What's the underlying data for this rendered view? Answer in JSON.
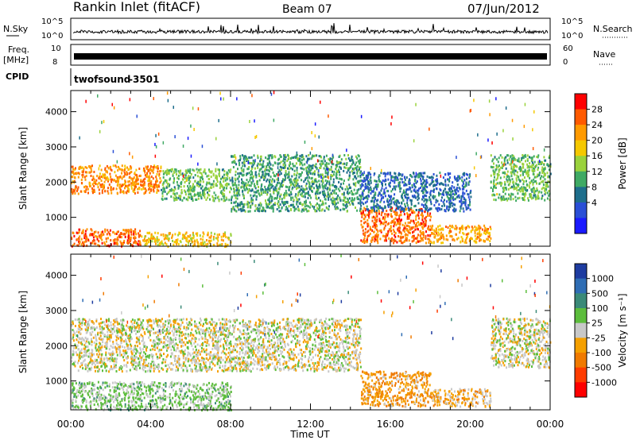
{
  "header": {
    "station": "Rankin Inlet (fitACF)",
    "beam": "Beam 07",
    "date": "07/Jun/2012"
  },
  "noise_panel": {
    "left_label": "N.Sky",
    "left_ticks": [
      "10^5",
      "10^0"
    ],
    "right_ticks": [
      "10^5",
      "10^0"
    ],
    "right_label": "N.Search"
  },
  "freq_panel": {
    "left_label": "Freq.",
    "left_unit": "[MHz]",
    "left_ticks": [
      "10",
      "8"
    ],
    "right_ticks": [
      "60",
      "0"
    ],
    "right_label": "Nave"
  },
  "cpid_panel": {
    "label": "CPID",
    "program": "twofsound",
    "id": "-3501"
  },
  "power_colorbar": {
    "label": "Power [dB]",
    "ticks": [
      "28",
      "24",
      "20",
      "16",
      "12",
      "8",
      "4"
    ],
    "colors": [
      "#ff0000",
      "#ff5a00",
      "#ff9a00",
      "#f5c800",
      "#9ad23c",
      "#3faa64",
      "#1e6e8c",
      "#2a4fd6",
      "#1a1aff"
    ]
  },
  "velocity_colorbar": {
    "label": "Velocity [m s⁻¹]",
    "ticks": [
      "1000",
      "500",
      "100",
      "25",
      "-25",
      "-100",
      "-500",
      "-1000"
    ],
    "colors": [
      "#1e3ca0",
      "#2f6db4",
      "#3a8a78",
      "#5cbd3c",
      "#c8c8c8",
      "#f5a000",
      "#f07a00",
      "#ff3c00",
      "#ff0000"
    ]
  },
  "range_axis": {
    "label": "Slant Range [km]",
    "ticks": [
      "4000",
      "3000",
      "2000",
      "1000"
    ]
  },
  "time_axis": {
    "label": "Time UT",
    "ticks": [
      "00:00",
      "04:00",
      "08:00",
      "12:00",
      "16:00",
      "20:00",
      "00:00"
    ]
  },
  "chart_data": {
    "type": "heatmap",
    "title": "Rankin Inlet (fitACF)",
    "xlabel": "Time UT",
    "ylabel": "Slant Range [km]",
    "x_ticks": [
      "00:00",
      "04:00",
      "08:00",
      "12:00",
      "16:00",
      "20:00",
      "00:00"
    ],
    "xlim_hours": [
      0,
      24
    ],
    "ylim_km": [
      180,
      4600
    ],
    "grid": false,
    "panels": [
      {
        "name": "Power [dB]",
        "colorbar_range": [
          0,
          32
        ],
        "scatter_regions": [
          {
            "t": [
              0,
              4.5
            ],
            "r": [
              1700,
              2500
            ],
            "value": 24
          },
          {
            "t": [
              0,
              3.5
            ],
            "r": [
              200,
              700
            ],
            "value": 26
          },
          {
            "t": [
              3.5,
              8
            ],
            "r": [
              200,
              600
            ],
            "value": 20
          },
          {
            "t": [
              4.5,
              8
            ],
            "r": [
              1500,
              2400
            ],
            "value": 14
          },
          {
            "t": [
              8,
              14.5
            ],
            "r": [
              1200,
              2800
            ],
            "value": 12
          },
          {
            "t": [
              14.5,
              18
            ],
            "r": [
              300,
              1300
            ],
            "value": 26
          },
          {
            "t": [
              14.5,
              20
            ],
            "r": [
              1200,
              2300
            ],
            "value": 8
          },
          {
            "t": [
              18,
              21
            ],
            "r": [
              300,
              800
            ],
            "value": 22
          },
          {
            "t": [
              21,
              24
            ],
            "r": [
              1500,
              2800
            ],
            "value": 14
          }
        ]
      },
      {
        "name": "Velocity [m s-1]",
        "colorbar_range": [
          -1000,
          1000
        ],
        "scatter_regions": [
          {
            "t": [
              0,
              8
            ],
            "r": [
              200,
              1000
            ],
            "value": 150
          },
          {
            "t": [
              0,
              14.5
            ],
            "r": [
              1300,
              2800
            ],
            "value": 0
          },
          {
            "t": [
              14.5,
              18
            ],
            "r": [
              300,
              1300
            ],
            "value": -300
          },
          {
            "t": [
              18,
              21
            ],
            "r": [
              300,
              800
            ],
            "value": -200
          },
          {
            "t": [
              21,
              24
            ],
            "r": [
              1400,
              2800
            ],
            "value": 0
          }
        ]
      }
    ],
    "noise_sky": {
      "ylim": [
        "10^0",
        "10^5"
      ]
    },
    "frequency": {
      "ylim_mhz": [
        8,
        10
      ],
      "value_mhz": 10
    },
    "nave": {
      "ylim": [
        0,
        60
      ]
    }
  }
}
